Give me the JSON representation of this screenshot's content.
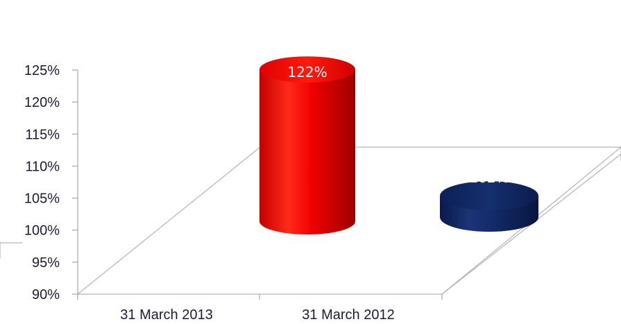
{
  "chart_data": {
    "type": "bar",
    "style": "3d-cylinder",
    "categories": [
      "31 March 2013",
      "31 March 2012"
    ],
    "values": [
      122,
      102
    ],
    "data_labels": [
      "122%",
      "102%"
    ],
    "bar_colors": [
      "#e60000",
      "#0a1f5c"
    ],
    "ylim": [
      90,
      125
    ],
    "y_ticks": [
      "90%",
      "95%",
      "100%",
      "105%",
      "110%",
      "115%",
      "120%",
      "125%"
    ],
    "grid": false,
    "legend": "none"
  }
}
